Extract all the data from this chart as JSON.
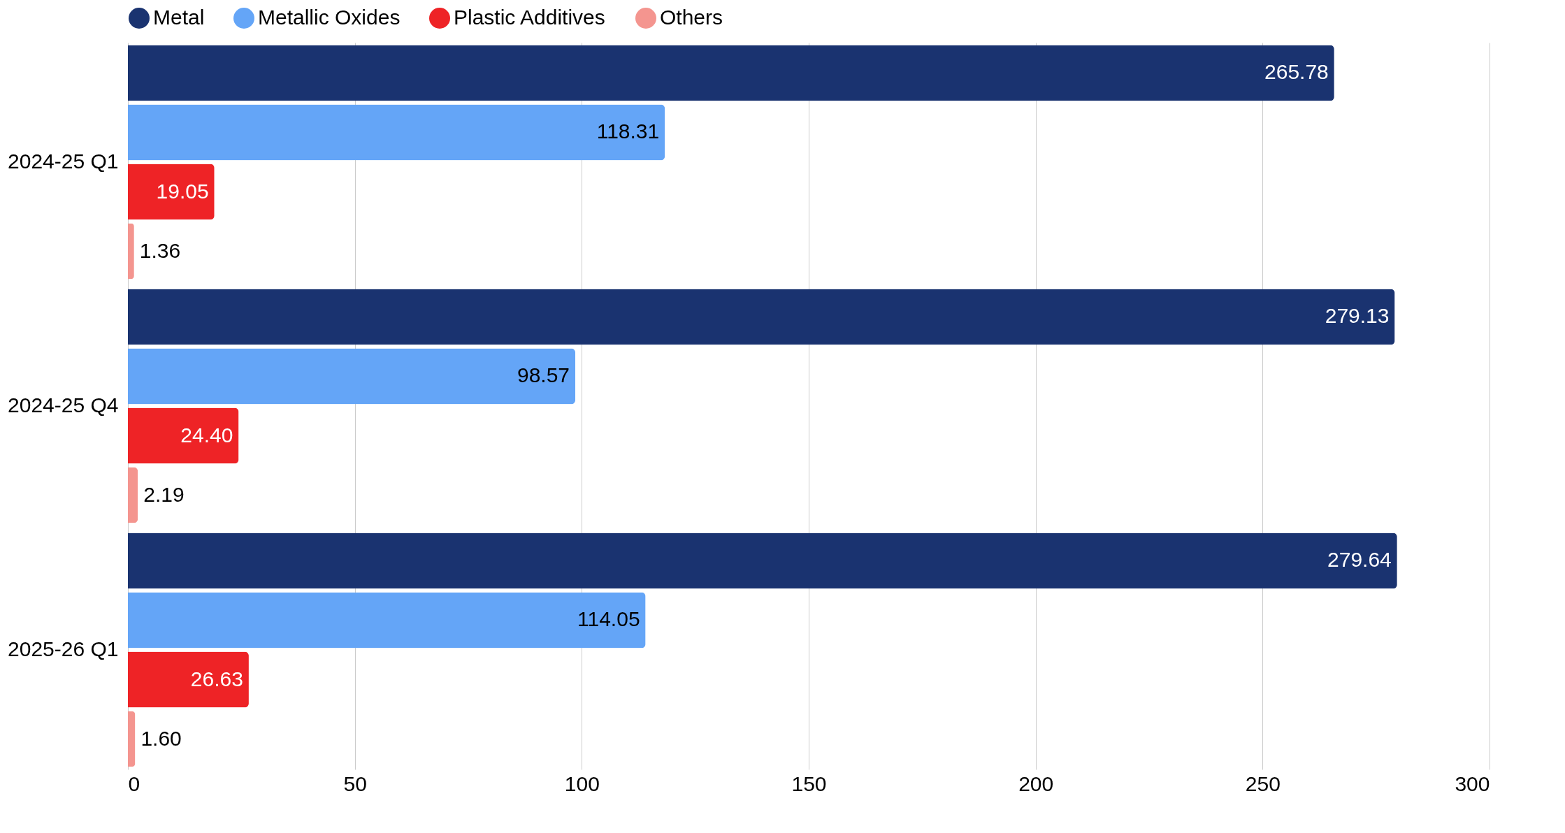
{
  "chart_data": {
    "type": "bar",
    "orientation": "horizontal",
    "categories": [
      "2024-25 Q1",
      "2024-25 Q4",
      "2025-26 Q1"
    ],
    "series": [
      {
        "name": "Metal",
        "color": "#1a3370",
        "values": [
          265.78,
          279.13,
          279.64
        ],
        "value_labels": [
          "265.78",
          "279.13",
          "279.64"
        ]
      },
      {
        "name": "Metallic Oxides",
        "color": "#64a5f7",
        "values": [
          118.31,
          98.57,
          114.05
        ],
        "value_labels": [
          "118.31",
          "98.57",
          "114.05"
        ]
      },
      {
        "name": "Plastic Additives",
        "color": "#ee2326",
        "values": [
          19.05,
          24.4,
          26.63
        ],
        "value_labels": [
          "19.05",
          "24.40",
          "26.63"
        ]
      },
      {
        "name": "Others",
        "color": "#f4958f",
        "values": [
          1.36,
          2.19,
          1.6
        ],
        "value_labels": [
          "1.36",
          "2.19",
          "1.60"
        ]
      }
    ],
    "xlim": [
      0,
      300
    ],
    "xticks": [
      0,
      50,
      100,
      150,
      200,
      250,
      300
    ],
    "grid": "x",
    "legend": "top"
  }
}
